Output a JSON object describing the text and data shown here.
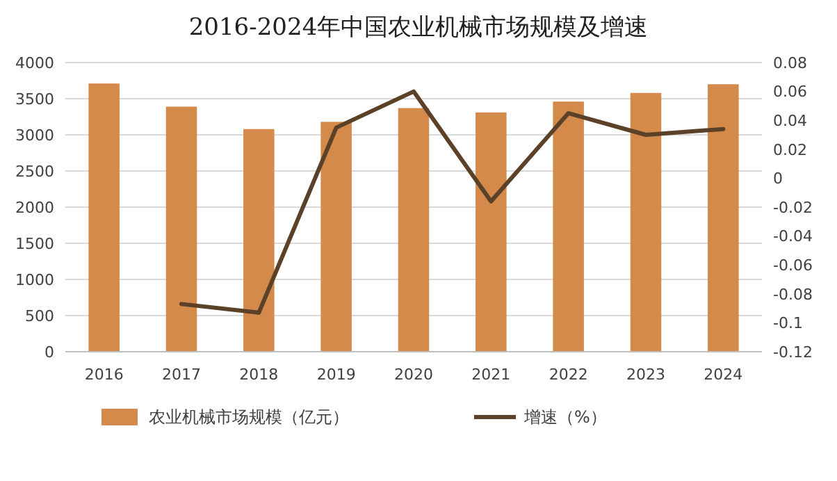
{
  "chart_data": {
    "type": "bar",
    "title": "2016-2024年中国农业机械市场规模及增速",
    "categories": [
      "2016",
      "2017",
      "2018",
      "2019",
      "2020",
      "2021",
      "2022",
      "2023",
      "2024"
    ],
    "series": [
      {
        "name": "农业机械市场规模（亿元）",
        "color": "#d38a4b",
        "values": [
          3710,
          3390,
          3080,
          3180,
          3370,
          3310,
          3460,
          3580,
          3700
        ]
      },
      {
        "name": "增速（%）",
        "type": "line",
        "axis": "y2",
        "color": "#5c4129",
        "values": [
          null,
          -0.087,
          -0.093,
          0.035,
          0.06,
          -0.016,
          0.045,
          0.03,
          0.034
        ]
      }
    ],
    "ylim": [
      0,
      4000
    ],
    "yticks": [
      0,
      500,
      1000,
      1500,
      2000,
      2500,
      3000,
      3500,
      4000
    ],
    "y2lim": [
      -0.12,
      0.08
    ],
    "y2ticks": [
      -0.12,
      -0.1,
      -0.08,
      -0.06,
      -0.04,
      -0.02,
      0,
      0.02,
      0.04,
      0.06,
      0.08
    ],
    "grid": "y",
    "legend": "bottom"
  }
}
